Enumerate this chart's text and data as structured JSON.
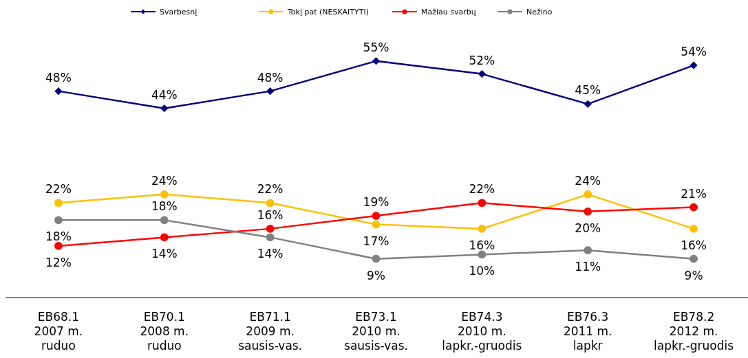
{
  "chart_data": {
    "type": "line",
    "categories": [
      "EB68.1\n2007 m.\nruduo",
      "EB70.1\n2008 m.\nruduo",
      "EB71.1\n2009 m.\nsausis-vas.",
      "EB73.1\n2010 m.\nsausis-vas.",
      "EB74.3\n2010 m.\nlapkr.-gruodis",
      "EB76.3\n2011 m.\nlapkr",
      "EB78.2\n2012 m.\nlapkr.-gruodis"
    ],
    "series": [
      {
        "name": "Svarbesnį",
        "color": "#000080",
        "marker": "diamond",
        "values": [
          48,
          44,
          48,
          55,
          52,
          45,
          54
        ],
        "value_labels": [
          "48%",
          "44%",
          "48%",
          "55%",
          "52%",
          "45%",
          "54%"
        ]
      },
      {
        "name": "Tokį pat (NESKAITYTI)",
        "color": "#ffc000",
        "marker": "circle",
        "values": [
          22,
          24,
          22,
          17,
          16,
          24,
          16
        ],
        "value_labels": [
          "22%",
          "24%",
          "22%",
          "17%",
          "16%",
          "24%",
          "16%"
        ]
      },
      {
        "name": "Mažiau svarbų",
        "color": "#ff0000",
        "marker": "circle",
        "values": [
          12,
          14,
          16,
          19,
          22,
          20,
          21
        ],
        "value_labels": [
          "12%",
          "14%",
          "16%",
          "19%",
          "22%",
          "20%",
          "21%"
        ]
      },
      {
        "name": "Nežino",
        "color": "#808080",
        "marker": "circle",
        "values": [
          18,
          18,
          14,
          9,
          10,
          11,
          9
        ],
        "value_labels": [
          "18%",
          "18%",
          "14%",
          "9%",
          "10%",
          "11%",
          "9%"
        ]
      }
    ],
    "legend": "top",
    "tick_labels": "x"
  }
}
